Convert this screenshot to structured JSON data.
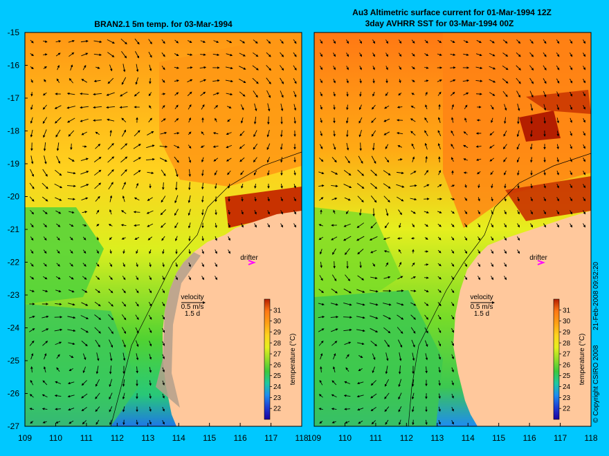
{
  "colors": {
    "page_background": "#00c8ff",
    "land": "#ffc89c",
    "drifter_marker": "#ff00ff",
    "vector": "#000000",
    "colorbar": [
      "#1a00a0",
      "#1e3cd2",
      "#1e8cf0",
      "#1ec8a0",
      "#3cc83c",
      "#96dc28",
      "#e6ef1e",
      "#ffd21e",
      "#ffa014",
      "#ff7814",
      "#e64b0a",
      "#b41e00"
    ]
  },
  "panels": [
    {
      "id": "left",
      "title_lines": [
        "BRAN2.1 5m temp. for 03-Mar-1994"
      ],
      "drifter_label": "drifter",
      "velocity_label": "velocity",
      "velocity_scale": "0.5 m/s",
      "velocity_time": "1.5 d",
      "colorbar_title": "temperature (°C)"
    },
    {
      "id": "right",
      "title_lines": [
        "Au3 Altimetric surface current for 01-Mar-1994 12Z",
        "3day AVHRR SST for 03-Mar-1994 00Z"
      ],
      "drifter_label": "drifter",
      "velocity_label": "velocity",
      "velocity_scale": "0.5 m/s",
      "velocity_time": "1.5 d",
      "colorbar_title": "temperature (°C)"
    }
  ],
  "lat_ticks": [
    "-15",
    "-16",
    "-17",
    "-18",
    "-19",
    "-20",
    "-21",
    "-22",
    "-23",
    "-24",
    "-25",
    "-26",
    "-27"
  ],
  "lon_ticks": [
    "109",
    "110",
    "111",
    "112",
    "113",
    "114",
    "115",
    "116",
    "117",
    "118"
  ],
  "colorbar_ticks": [
    "22",
    "23",
    "24",
    "25",
    "26",
    "27",
    "28",
    "29",
    "30",
    "31"
  ],
  "map_extent": {
    "lon": [
      109,
      118
    ],
    "lat": [
      -27,
      -15
    ]
  },
  "colorbar_range": [
    21,
    32
  ],
  "copyright": "© Copyright CSIRO 2008",
  "timestamp": "21-Feb-2008 09:52:20"
}
